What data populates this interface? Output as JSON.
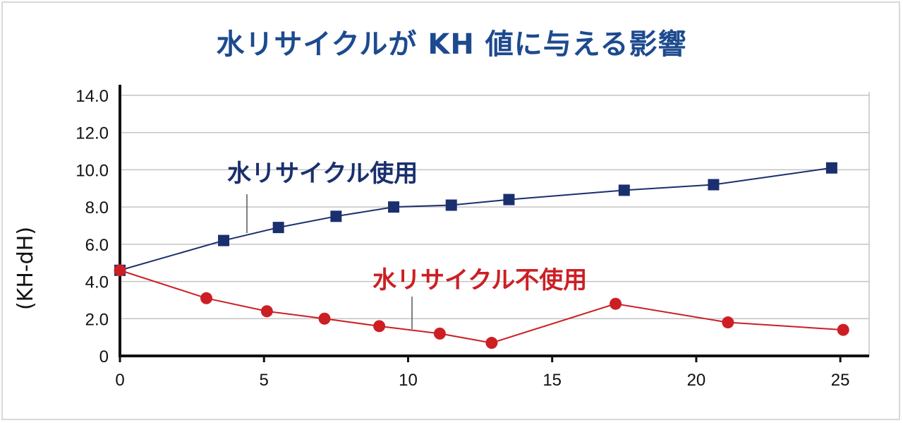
{
  "colors": {
    "series1": "#1a2f6e",
    "series2": "#cc1f24",
    "title": "#1d4a8f",
    "grid": "#c4c4c4",
    "axis": "#111111"
  },
  "chart_data": {
    "type": "line",
    "title": "水リサイクルが KH 値に与える影響",
    "xlabel": "",
    "ylabel": "(KH-dH)",
    "xlim": [
      0,
      26
    ],
    "ylim": [
      0,
      14
    ],
    "x_ticks": [
      "0",
      "5",
      "10",
      "15",
      "20",
      "25"
    ],
    "y_ticks": [
      "0",
      "2.0",
      "4.0",
      "6.0",
      "8.0",
      "10.0",
      "12.0",
      "14.0"
    ],
    "grid": true,
    "series": [
      {
        "name": "水リサイクル使用",
        "marker": "square",
        "x": [
          0,
          3.6,
          5.5,
          7.5,
          9.5,
          11.5,
          13.5,
          17.5,
          20.6,
          24.7
        ],
        "y": [
          4.6,
          6.2,
          6.9,
          7.5,
          8.0,
          8.1,
          8.4,
          8.9,
          9.2,
          10.1
        ]
      },
      {
        "name": "水リサイクル不使用",
        "marker": "circle",
        "x": [
          0,
          3.0,
          5.1,
          7.1,
          9.0,
          11.1,
          12.9,
          17.2,
          21.1,
          25.1
        ],
        "y": [
          4.6,
          3.1,
          2.4,
          2.0,
          1.6,
          1.2,
          0.7,
          2.8,
          1.8,
          1.4
        ]
      }
    ]
  }
}
